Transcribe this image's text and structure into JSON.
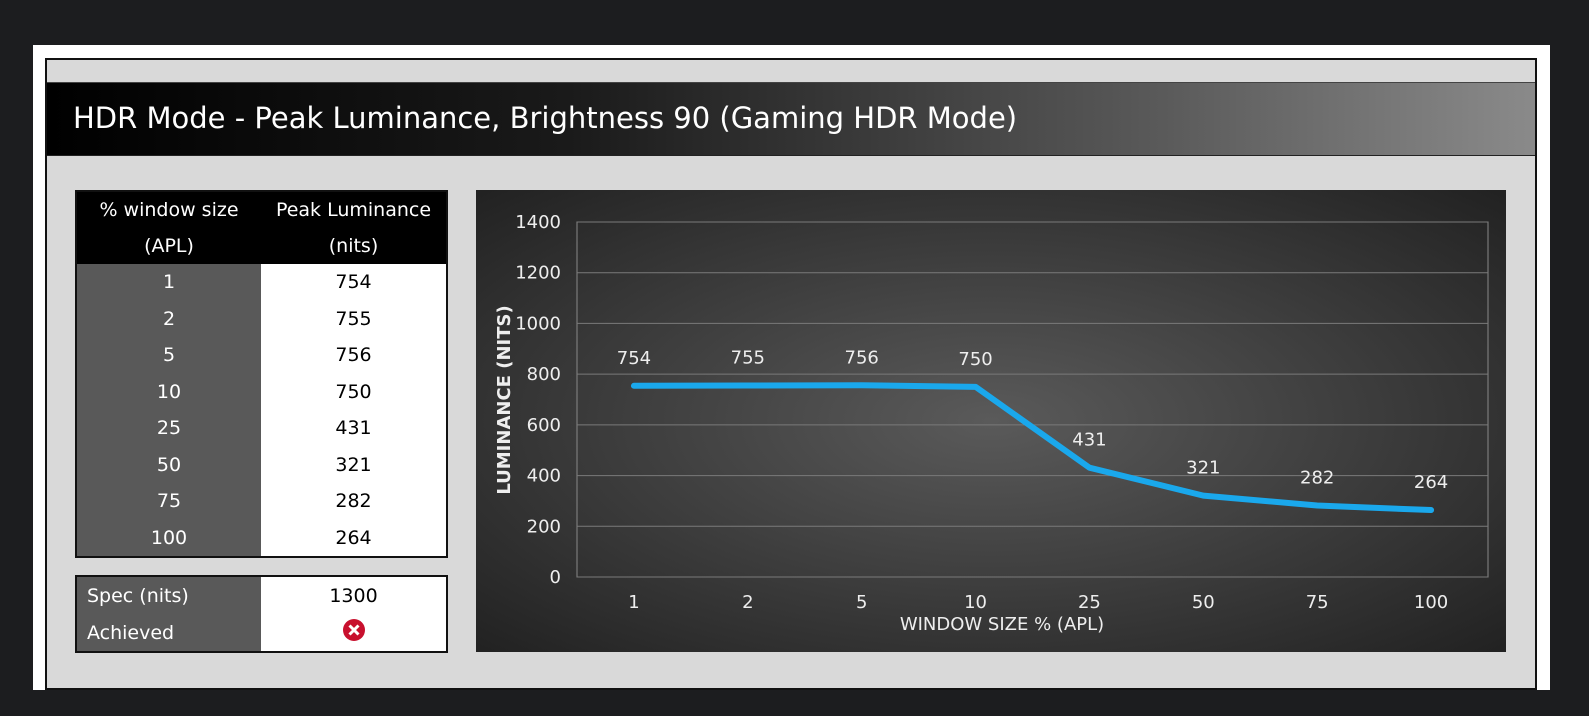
{
  "header": {
    "title": "HDR Mode - Peak Luminance, Brightness 90 (Gaming HDR Mode)"
  },
  "table": {
    "columns": [
      "% window size (APL)",
      "Peak Luminance (nits)"
    ],
    "rows": [
      [
        1,
        754
      ],
      [
        2,
        755
      ],
      [
        5,
        756
      ],
      [
        10,
        750
      ],
      [
        25,
        431
      ],
      [
        50,
        321
      ],
      [
        75,
        282
      ],
      [
        100,
        264
      ]
    ]
  },
  "spec": {
    "rows": [
      {
        "label": "Spec (nits)",
        "value": 1300
      },
      {
        "label": "Achieved"
      }
    ]
  },
  "chart_data": {
    "type": "line",
    "x_label": "WINDOW SIZE % (APL)",
    "y_label": "LUMINANCE (NITS)",
    "categories": [
      "1",
      "2",
      "5",
      "10",
      "25",
      "50",
      "75",
      "100"
    ],
    "values": [
      754,
      755,
      756,
      750,
      431,
      321,
      282,
      264
    ],
    "color": "#1aa8ec",
    "ylim": [
      0,
      1400
    ],
    "yticks": [
      0,
      200,
      400,
      600,
      800,
      1000,
      1200,
      1400
    ],
    "grid": true
  }
}
